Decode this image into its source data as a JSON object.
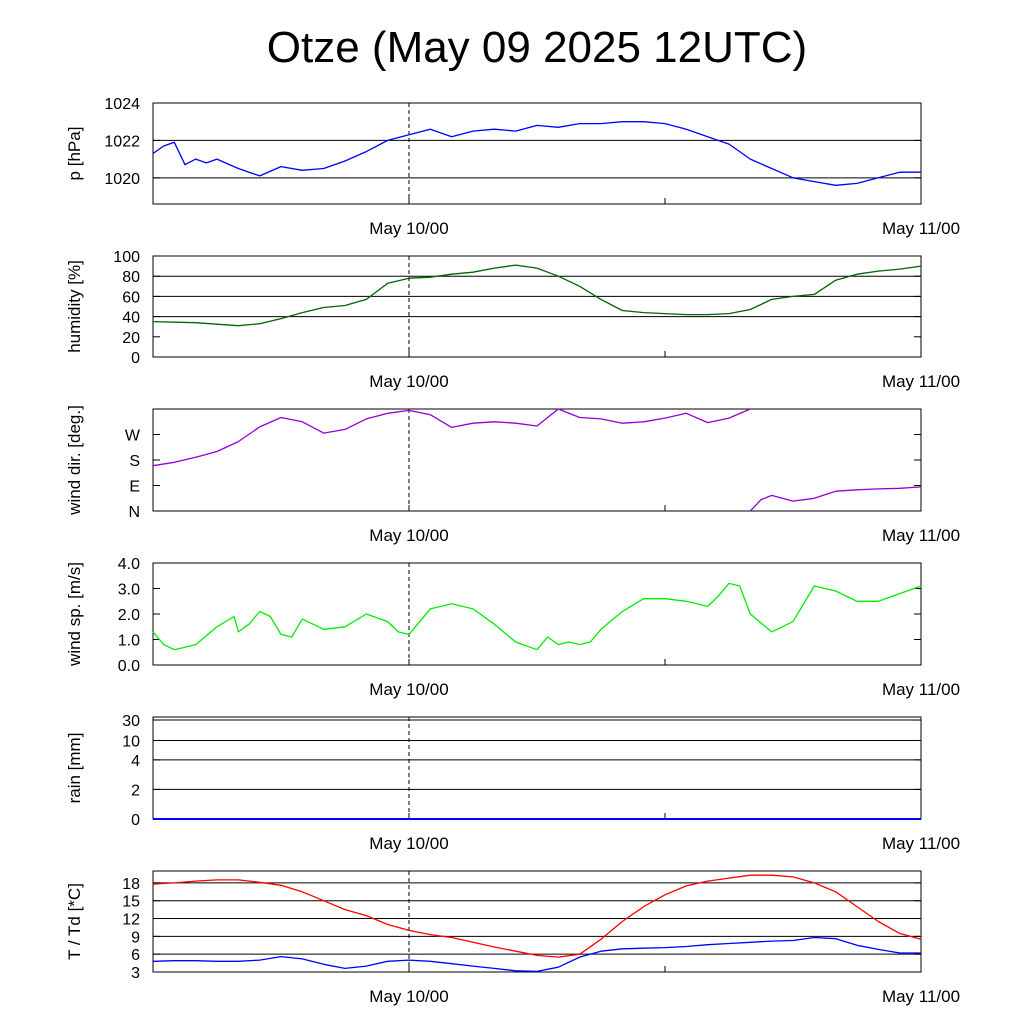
{
  "title": "Otze (May 09 2025 12UTC)",
  "time_ticks": [
    "May 10/00",
    "May 11/00"
  ],
  "colors": {
    "pressure": "#0000ff",
    "humidity": "#006400",
    "wind_dir": "#9400d3",
    "wind_speed": "#00ee00",
    "rain": "#0000ff",
    "temperature": "#ff0000",
    "dewpoint": "#0000ff"
  },
  "chart_data": [
    {
      "type": "line",
      "id": "pressure",
      "ylabel": "p [hPa]",
      "x_range": [
        "May 09 12UTC",
        "May 11 00UTC"
      ],
      "ylim": [
        1018.6,
        1024
      ],
      "yticks": [
        1020,
        1022,
        1024
      ],
      "ytick_labels": [
        "1020",
        "1022",
        "1024"
      ],
      "hgrid": [
        1020,
        1022,
        1024
      ],
      "series": [
        {
          "color": "#0000ff",
          "x": [
            0,
            0.5,
            1,
            1.5,
            2,
            2.5,
            3,
            4,
            5,
            6,
            7,
            8,
            9,
            10,
            11,
            12,
            13,
            14,
            15,
            16,
            17,
            18,
            19,
            20,
            21,
            22,
            23,
            24,
            25,
            26,
            27,
            28,
            29,
            30,
            31,
            32,
            33,
            34,
            35,
            36
          ],
          "y": [
            1021.3,
            1021.7,
            1021.9,
            1020.7,
            1021.0,
            1020.8,
            1021.0,
            1020.5,
            1020.1,
            1020.6,
            1020.4,
            1020.5,
            1020.9,
            1021.4,
            1022.0,
            1022.3,
            1022.6,
            1022.2,
            1022.5,
            1022.6,
            1022.5,
            1022.8,
            1022.7,
            1022.9,
            1022.9,
            1023.0,
            1023.0,
            1022.9,
            1022.6,
            1022.2,
            1021.8,
            1021.0,
            1020.5,
            1020.0,
            1019.8,
            1019.6,
            1019.7,
            1020.0,
            1020.3,
            1020.3
          ]
        }
      ]
    },
    {
      "type": "line",
      "id": "humidity",
      "ylabel": "humidity [%]",
      "ylim": [
        0,
        100
      ],
      "yticks": [
        0,
        20,
        40,
        60,
        80,
        100
      ],
      "ytick_labels": [
        "0",
        "20",
        "40",
        "60",
        "80",
        "100"
      ],
      "hgrid": [
        40,
        60,
        80
      ],
      "series": [
        {
          "color": "#006400",
          "x": [
            0,
            2,
            4,
            5,
            6,
            7,
            8,
            9,
            10,
            11,
            12,
            13,
            14,
            15,
            16,
            17,
            18,
            19,
            20,
            21,
            22,
            23,
            24,
            25,
            26,
            27,
            28,
            29,
            30,
            31,
            32,
            33,
            34,
            35,
            36
          ],
          "y": [
            35,
            34,
            31,
            33,
            38,
            44,
            49,
            51,
            57,
            73,
            78,
            79,
            82,
            84,
            88,
            91,
            88,
            80,
            70,
            57,
            46,
            44,
            43,
            42,
            42,
            43,
            47,
            57,
            60,
            62,
            76,
            82,
            85,
            87,
            90
          ]
        }
      ]
    },
    {
      "type": "line",
      "id": "wind_dir",
      "ylabel": "wind dir. [deg.]",
      "ylim": [
        0,
        360
      ],
      "yticks": [
        0,
        90,
        180,
        270
      ],
      "ytick_labels": [
        "N",
        "E",
        "S",
        "W"
      ],
      "hgrid": [],
      "series": [
        {
          "color": "#9400d3",
          "x": [
            0,
            1,
            2,
            3,
            4,
            5,
            6,
            7,
            8,
            9,
            10,
            11,
            12,
            13,
            14,
            15,
            16,
            17,
            18,
            19,
            20,
            21,
            22,
            23,
            24,
            25,
            26,
            27,
            28
          ],
          "y": [
            160,
            172,
            190,
            210,
            245,
            297,
            330,
            315,
            275,
            288,
            325,
            345,
            355,
            340,
            295,
            310,
            315,
            310,
            300,
            365,
            330,
            325,
            310,
            315,
            328,
            345,
            312,
            328,
            362
          ]
        },
        {
          "color": "#9400d3",
          "x": [
            28,
            28.5,
            29,
            30,
            31,
            32,
            33,
            34,
            35,
            36
          ],
          "y": [
            0,
            40,
            55,
            35,
            45,
            70,
            75,
            78,
            80,
            85
          ]
        }
      ]
    },
    {
      "type": "line",
      "id": "wind_speed",
      "ylabel": "wind sp. [m/s]",
      "ylim": [
        0,
        4
      ],
      "yticks": [
        0,
        1,
        2,
        3,
        4
      ],
      "ytick_labels": [
        "0.0",
        "1.0",
        "2.0",
        "3.0",
        "4.0"
      ],
      "hgrid": [],
      "series": [
        {
          "color": "#00ee00",
          "x": [
            0,
            0.5,
            1,
            2,
            3,
            3.8,
            4,
            4.5,
            5,
            5.5,
            6,
            6.5,
            7,
            8,
            9,
            10,
            11,
            11.5,
            12,
            13,
            14,
            15,
            16,
            17,
            18,
            18.5,
            19,
            19.5,
            20,
            20.5,
            21,
            22,
            23,
            24,
            25,
            26,
            26.5,
            27,
            27.5,
            28,
            29,
            30,
            31,
            32,
            33,
            34,
            35,
            36
          ],
          "y": [
            1.3,
            0.8,
            0.6,
            0.8,
            1.5,
            1.9,
            1.3,
            1.6,
            2.1,
            1.9,
            1.2,
            1.1,
            1.8,
            1.4,
            1.5,
            2.0,
            1.7,
            1.3,
            1.2,
            2.2,
            2.4,
            2.2,
            1.6,
            0.9,
            0.6,
            1.1,
            0.8,
            0.9,
            0.8,
            0.9,
            1.4,
            2.1,
            2.6,
            2.6,
            2.5,
            2.3,
            2.7,
            3.2,
            3.1,
            2.0,
            1.3,
            1.7,
            3.1,
            2.9,
            2.5,
            2.5,
            2.8,
            3.1
          ]
        }
      ]
    },
    {
      "type": "line",
      "id": "rain",
      "ylabel": "rain [mm]",
      "y_scale": "nonlinear",
      "yticks": [
        0,
        2,
        4,
        10,
        30
      ],
      "ytick_labels": [
        "0",
        "2",
        "4",
        "10",
        "30"
      ],
      "hgrid": [
        2,
        4,
        10,
        30
      ],
      "series": [
        {
          "color": "#0000ff",
          "x": [
            0,
            36
          ],
          "y": [
            0,
            0
          ]
        }
      ]
    },
    {
      "type": "line",
      "id": "temp_dew",
      "ylabel": "T / Td [*C]",
      "ylim": [
        3,
        20
      ],
      "yticks": [
        3,
        6,
        9,
        12,
        15,
        18
      ],
      "ytick_labels": [
        "3",
        "6",
        "9",
        "12",
        "15",
        "18"
      ],
      "hgrid": [
        6,
        9,
        12,
        15,
        18
      ],
      "series": [
        {
          "color": "#ff0000",
          "x": [
            0,
            1,
            2,
            3,
            4,
            5,
            6,
            7,
            8,
            9,
            10,
            11,
            12,
            13,
            14,
            15,
            16,
            17,
            18,
            19,
            20,
            21,
            22,
            23,
            24,
            25,
            26,
            27,
            28,
            29,
            30,
            31,
            32,
            33,
            34,
            35,
            36
          ],
          "y": [
            17.8,
            18.0,
            18.3,
            18.5,
            18.5,
            18.1,
            17.6,
            16.5,
            15.0,
            13.5,
            12.5,
            11.0,
            10.0,
            9.3,
            8.8,
            8.0,
            7.2,
            6.5,
            5.8,
            5.5,
            6.0,
            8.5,
            11.5,
            14.0,
            16.0,
            17.5,
            18.3,
            18.8,
            19.3,
            19.3,
            19.0,
            18.0,
            16.5,
            14.0,
            11.5,
            9.5,
            8.5
          ]
        },
        {
          "color": "#0000ff",
          "x": [
            0,
            1,
            2,
            3,
            4,
            5,
            6,
            7,
            8,
            9,
            10,
            11,
            12,
            13,
            14,
            15,
            16,
            17,
            18,
            19,
            20,
            21,
            22,
            23,
            24,
            25,
            26,
            27,
            28,
            29,
            30,
            31,
            32,
            33,
            34,
            35,
            36
          ],
          "y": [
            4.8,
            4.9,
            4.9,
            4.8,
            4.8,
            5.0,
            5.6,
            5.2,
            4.3,
            3.6,
            4.0,
            4.8,
            5.0,
            4.8,
            4.4,
            4.0,
            3.6,
            3.2,
            3.1,
            3.8,
            5.5,
            6.5,
            6.9,
            7.0,
            7.1,
            7.3,
            7.6,
            7.8,
            8.0,
            8.2,
            8.3,
            8.8,
            8.6,
            7.5,
            6.8,
            6.2,
            6.2
          ]
        }
      ]
    }
  ]
}
